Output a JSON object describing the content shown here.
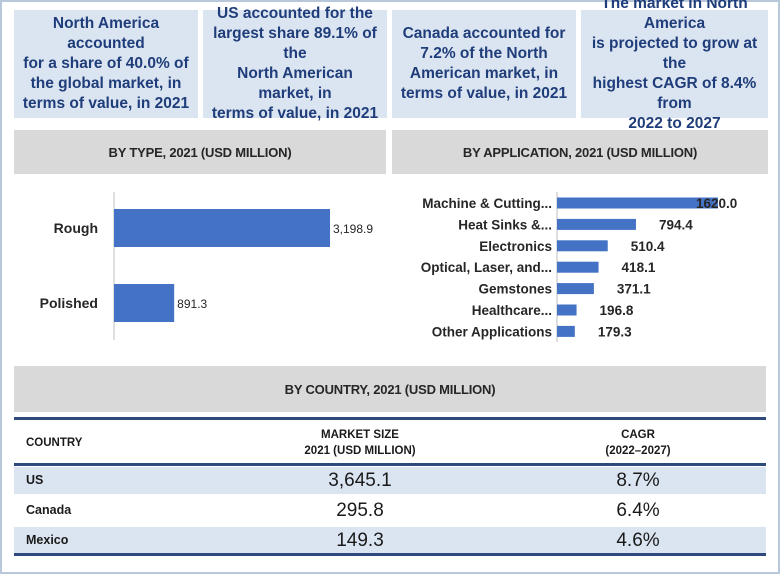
{
  "callouts": [
    "North America accounted\nfor a share of 40.0% of\nthe global market, in\nterms of value, in 2021",
    "US accounted for the\nlargest share 89.1% of the\nNorth American market, in\nterms of value, in 2021",
    "Canada accounted for\n7.2% of the North\nAmerican market, in\nterms of value, in 2021",
    "The market in North America\nis projected to grow at the\nhighest CAGR of  8.4% from\n2022 to 2027"
  ],
  "colors": {
    "bar": "#4472c4",
    "callout_bg": "#dbe5f1",
    "callout_text": "#1f3d7a",
    "band_bg": "#d9d9d9",
    "row_alt": "#dbe5f1",
    "rule": "#2e4a7d"
  },
  "chart_data": [
    {
      "type": "bar",
      "orientation": "horizontal",
      "title": "BY TYPE, 2021 (USD MILLION)",
      "categories": [
        "Rough",
        "Polished"
      ],
      "values": [
        3198.9,
        891.3
      ],
      "value_labels": [
        "3,198.9",
        "891.3"
      ]
    },
    {
      "type": "bar",
      "orientation": "horizontal",
      "title": "BY APPLICATION, 2021 (USD MILLION)",
      "categories": [
        "Machine & Cutting...",
        "Heat Sinks &...",
        "Electronics",
        "Optical, Laser, and...",
        "Gemstones",
        "Healthcare...",
        "Other Applications"
      ],
      "values": [
        1620.0,
        794.4,
        510.4,
        418.1,
        371.1,
        196.8,
        179.3
      ],
      "value_labels": [
        "1620.0",
        "794.4",
        "510.4",
        "418.1",
        "371.1",
        "196.8",
        "179.3"
      ]
    },
    {
      "type": "table",
      "title": "BY COUNTRY, 2021 (USD MILLION)",
      "columns": [
        "COUNTRY",
        "MARKET SIZE\n2021 (USD MILLION)",
        "CAGR\n(2022–2027)"
      ],
      "rows": [
        {
          "country": "US",
          "market_size": "3,645.1",
          "cagr": "8.7%"
        },
        {
          "country": "Canada",
          "market_size": "295.8",
          "cagr": "6.4%"
        },
        {
          "country": "Mexico",
          "market_size": "149.3",
          "cagr": "4.6%"
        }
      ]
    }
  ]
}
